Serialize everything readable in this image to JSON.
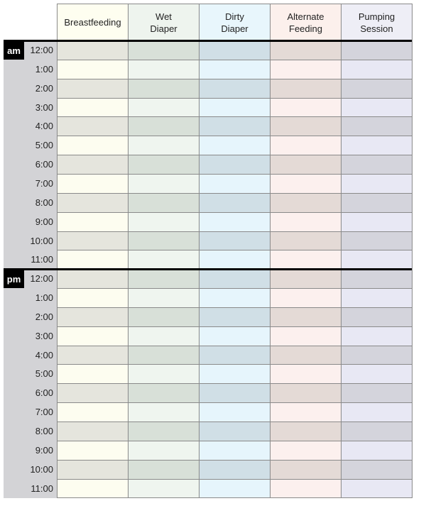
{
  "columns": [
    {
      "label": "Breastfeeding",
      "header_color": "#fefef0",
      "shade": "#e5e5dd",
      "light": "#fdfdf0"
    },
    {
      "label": "Wet\nDiaper",
      "header_color": "#eef4ee",
      "shade": "#d8e0d8",
      "light": "#eff5ef"
    },
    {
      "label": "Dirty\nDiaper",
      "header_color": "#e8f6fc",
      "shade": "#d0dfe6",
      "light": "#e6f5fc"
    },
    {
      "label": "Alternate\nFeeding",
      "header_color": "#fcf0ec",
      "shade": "#e4dad6",
      "light": "#fcf0ee"
    },
    {
      "label": "Pumping\nSession",
      "header_color": "#eeeef6",
      "shade": "#d4d4dc",
      "light": "#e8e8f4"
    }
  ],
  "periods": [
    {
      "label": "am",
      "times": [
        "12:00",
        "1:00",
        "2:00",
        "3:00",
        "4:00",
        "5:00",
        "6:00",
        "7:00",
        "8:00",
        "9:00",
        "10:00",
        "11:00"
      ]
    },
    {
      "label": "pm",
      "times": [
        "12:00",
        "1:00",
        "2:00",
        "3:00",
        "4:00",
        "5:00",
        "6:00",
        "7:00",
        "8:00",
        "9:00",
        "10:00",
        "11:00"
      ]
    }
  ]
}
